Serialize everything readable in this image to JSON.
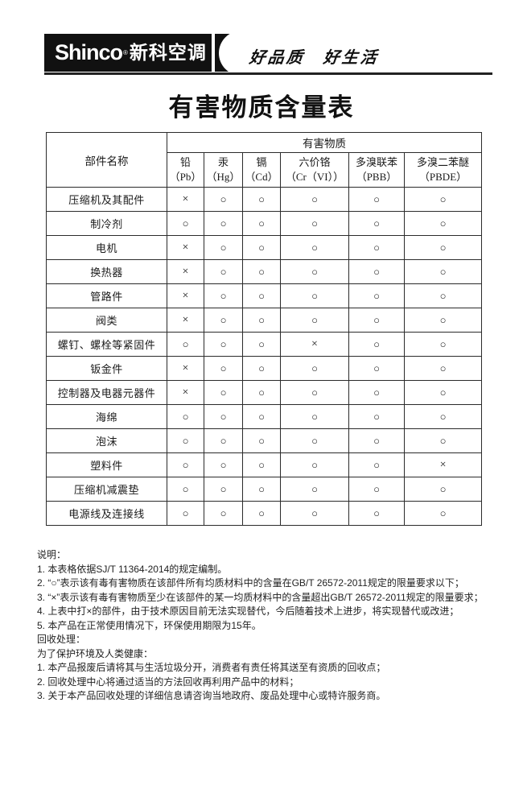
{
  "brand": {
    "logo_text": "Shinco",
    "registered_mark": "®",
    "logo_cn": "新科空调",
    "slogan": "好品质　好生活"
  },
  "title": "有害物质含量表",
  "table": {
    "col_component": "部件名称",
    "col_group": "有害物质",
    "substances": [
      {
        "name": "铅",
        "symbol": "（Pb）"
      },
      {
        "name": "汞",
        "symbol": "（Hg）"
      },
      {
        "name": "镉",
        "symbol": "（Cd）"
      },
      {
        "name": "六价铬",
        "symbol": "（Cr（VI））"
      },
      {
        "name": "多溴联苯",
        "symbol": "（PBB）"
      },
      {
        "name": "多溴二苯醚",
        "symbol": "（PBDE）"
      }
    ],
    "rows": [
      {
        "component": "压缩机及其配件",
        "values": [
          "×",
          "○",
          "○",
          "○",
          "○",
          "○"
        ]
      },
      {
        "component": "制冷剂",
        "values": [
          "○",
          "○",
          "○",
          "○",
          "○",
          "○"
        ]
      },
      {
        "component": "电机",
        "values": [
          "×",
          "○",
          "○",
          "○",
          "○",
          "○"
        ]
      },
      {
        "component": "换热器",
        "values": [
          "×",
          "○",
          "○",
          "○",
          "○",
          "○"
        ]
      },
      {
        "component": "管路件",
        "values": [
          "×",
          "○",
          "○",
          "○",
          "○",
          "○"
        ]
      },
      {
        "component": "阀类",
        "values": [
          "×",
          "○",
          "○",
          "○",
          "○",
          "○"
        ]
      },
      {
        "component": "螺钉、螺栓等紧固件",
        "values": [
          "○",
          "○",
          "○",
          "×",
          "○",
          "○"
        ]
      },
      {
        "component": "钣金件",
        "values": [
          "×",
          "○",
          "○",
          "○",
          "○",
          "○"
        ]
      },
      {
        "component": "控制器及电器元器件",
        "values": [
          "×",
          "○",
          "○",
          "○",
          "○",
          "○"
        ]
      },
      {
        "component": "海绵",
        "values": [
          "○",
          "○",
          "○",
          "○",
          "○",
          "○"
        ]
      },
      {
        "component": "泡沫",
        "values": [
          "○",
          "○",
          "○",
          "○",
          "○",
          "○"
        ]
      },
      {
        "component": "塑料件",
        "values": [
          "○",
          "○",
          "○",
          "○",
          "○",
          "×"
        ]
      },
      {
        "component": "压缩机减震垫",
        "values": [
          "○",
          "○",
          "○",
          "○",
          "○",
          "○"
        ]
      },
      {
        "component": "电源线及连接线",
        "values": [
          "○",
          "○",
          "○",
          "○",
          "○",
          "○"
        ]
      }
    ]
  },
  "notes": {
    "heading": "说明：",
    "items": [
      "1. 本表格依据SJ/T 11364-2014的规定编制。",
      "2. “○”表示该有毒有害物质在该部件所有均质材料中的含量在GB/T 26572-2011规定的限量要求以下；",
      "3. “×”表示该有毒有害物质至少在该部件的某一均质材料中的含量超出GB/T 26572-2011规定的限量要求；",
      "4. 上表中打×的部件，由于技术原因目前无法实现替代，今后随着技术上进步，将实现替代或改进；",
      "5. 本产品在正常使用情况下，环保使用期限为15年。"
    ],
    "recycle_heading": "回收处理：",
    "recycle_intro": "为了保护环境及人类健康：",
    "recycle_items": [
      "1. 本产品报废后请将其与生活垃圾分开，消费者有责任将其送至有资质的回收点；",
      "2. 回收处理中心将通过适当的方法回收再利用产品中的材料；",
      "3. 关于本产品回收处理的详细信息请咨询当地政府、废品处理中心或特许服务商。"
    ]
  },
  "colors": {
    "ink": "#1a1a1a",
    "banner": "#111111",
    "rule": "#222222"
  }
}
